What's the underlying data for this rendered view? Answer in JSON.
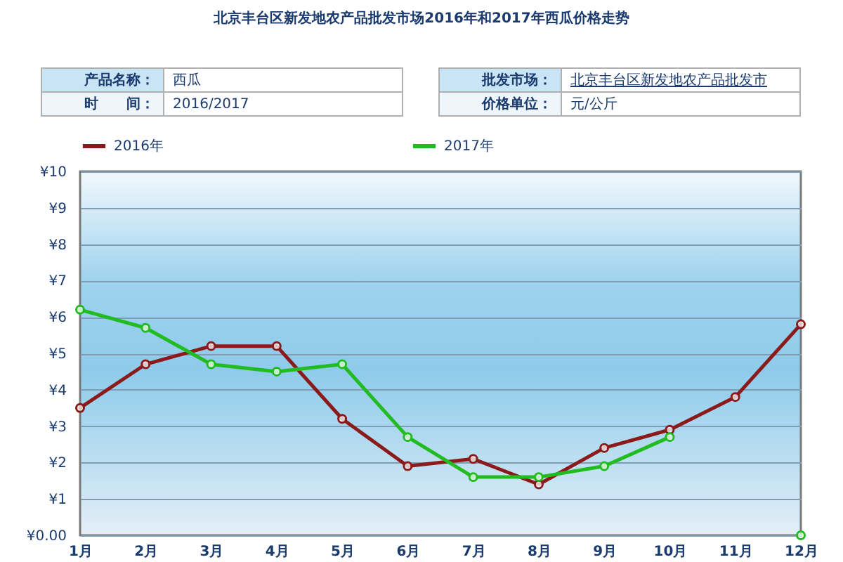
{
  "chart_data": {
    "type": "line",
    "title": "北京丰台区新发地农产品批发市场2016年和2017年西瓜价格走势",
    "annotations": [
      "产品名称：",
      "西瓜",
      "批发市场：",
      "北京丰台区新发地农产品批发市",
      "时　　间：",
      "2016/2017",
      "价格单位：",
      "元/公斤"
    ],
    "categories": [
      "1月",
      "2月",
      "3月",
      "4月",
      "5月",
      "6月",
      "7月",
      "8月",
      "9月",
      "10月",
      "11月",
      "12月"
    ],
    "series": [
      {
        "name": "2016年",
        "color": "#8b1a1a",
        "values": [
          3.5,
          4.7,
          5.2,
          5.2,
          3.2,
          1.9,
          2.1,
          1.4,
          2.4,
          2.9,
          3.8,
          5.8
        ]
      },
      {
        "name": "2017年",
        "color": "#22bb22",
        "values": [
          6.2,
          5.7,
          4.7,
          4.5,
          4.7,
          2.7,
          1.6,
          1.6,
          1.9,
          2.7,
          null,
          0
        ]
      }
    ],
    "ylim": [
      0,
      10
    ],
    "yticks": [
      {
        "value": 0,
        "label": "¥0.00"
      },
      {
        "value": 1,
        "label": "¥1"
      },
      {
        "value": 2,
        "label": "¥2"
      },
      {
        "value": 3,
        "label": "¥3"
      },
      {
        "value": 4,
        "label": "¥4"
      },
      {
        "value": 5,
        "label": "¥5"
      },
      {
        "value": 6,
        "label": "¥6"
      },
      {
        "value": 7,
        "label": "¥7"
      },
      {
        "value": 8,
        "label": "¥8"
      },
      {
        "value": 9,
        "label": "¥9"
      },
      {
        "value": 10,
        "label": "¥10"
      }
    ],
    "grid": "y",
    "legend": "top left",
    "marker": "circle",
    "line_style": "solid"
  }
}
